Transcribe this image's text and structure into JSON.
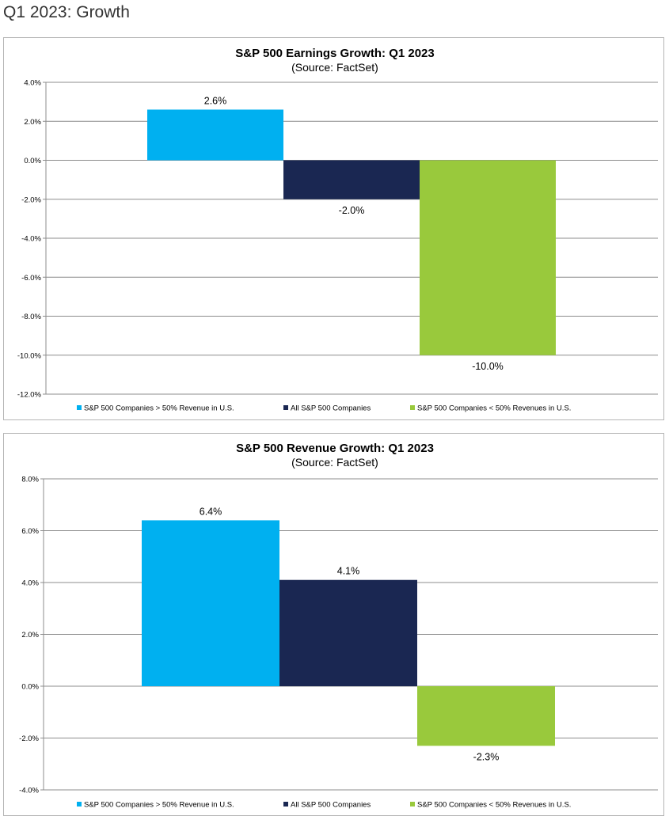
{
  "page": {
    "heading": "Q1 2023: Growth"
  },
  "legend": {
    "items": [
      {
        "label": "S&P 500 Companies > 50% Revenue in U.S.",
        "color": "#00b0f0"
      },
      {
        "label": "All S&P 500 Companies",
        "color": "#1a2752"
      },
      {
        "label": "S&P 500 Companies < 50% Revenues in U.S.",
        "color": "#99c93c"
      }
    ]
  },
  "chart_data": [
    {
      "type": "bar",
      "title": "S&P 500 Earnings Growth: Q1 2023",
      "subtitle": "(Source: FactSet)",
      "categories": [
        "S&P 500 Companies > 50% Revenue in U.S.",
        "All S&P 500 Companies",
        "S&P 500 Companies < 50% Revenues in U.S."
      ],
      "values": [
        2.6,
        -2.0,
        -10.0
      ],
      "data_labels": [
        "2.6%",
        "-2.0%",
        "-10.0%"
      ],
      "colors": [
        "#00b0f0",
        "#1a2752",
        "#99c93c"
      ],
      "ylim": [
        -12,
        4
      ],
      "yticks": [
        4,
        2,
        0,
        -2,
        -4,
        -6,
        -8,
        -10,
        -12
      ],
      "ytick_labels": [
        "4.0%",
        "2.0%",
        "0.0%",
        "-2.0%",
        "-4.0%",
        "-6.0%",
        "-8.0%",
        "-10.0%",
        "-12.0%"
      ],
      "grid": true,
      "legend": "bottom"
    },
    {
      "type": "bar",
      "title": "S&P 500 Revenue Growth: Q1 2023",
      "subtitle": "(Source: FactSet)",
      "categories": [
        "S&P 500 Companies > 50% Revenue in U.S.",
        "All S&P 500 Companies",
        "S&P 500 Companies < 50% Revenues in U.S."
      ],
      "values": [
        6.4,
        4.1,
        -2.3
      ],
      "data_labels": [
        "6.4%",
        "4.1%",
        "-2.3%"
      ],
      "colors": [
        "#00b0f0",
        "#1a2752",
        "#99c93c"
      ],
      "ylim": [
        -4,
        8
      ],
      "yticks": [
        8,
        6,
        4,
        2,
        0,
        -2,
        -4
      ],
      "ytick_labels": [
        "8.0%",
        "6.0%",
        "4.0%",
        "2.0%",
        "0.0%",
        "-2.0%",
        "-4.0%"
      ],
      "grid": true,
      "legend": "bottom"
    }
  ]
}
